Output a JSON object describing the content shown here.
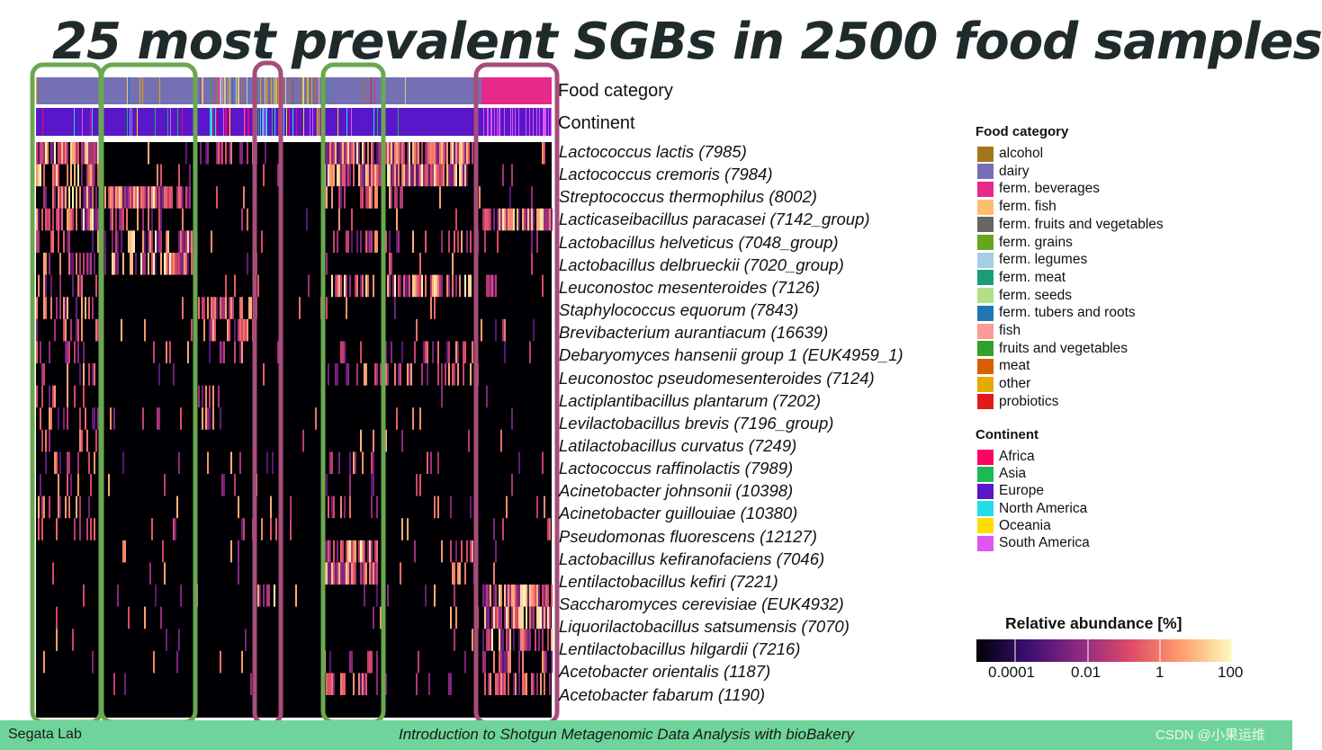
{
  "title": "25 most prevalent SGBs in 2500 food samples",
  "annotations": {
    "food_category_label": "Food category",
    "continent_label": "Continent"
  },
  "chart_data": {
    "type": "heatmap",
    "rows": [
      "Lactococcus lactis (7985)",
      "Lactococcus cremoris (7984)",
      "Streptococcus thermophilus (8002)",
      "Lacticaseibacillus paracasei (7142_group)",
      "Lactobacillus helveticus  (7048_group)",
      "Lactobacillus delbrueckii  (7020_group)",
      "Leuconostoc mesenteroides (7126)",
      "Staphylococcus equorum (7843)",
      "Brevibacterium aurantiacum (16639)",
      "Debaryomyces hansenii group 1 (EUK4959_1)",
      "Leuconostoc pseudomesenteroides (7124)",
      "Lactiplantibacillus plantarum (7202)",
      "Levilactobacillus brevis (7196_group)",
      "Latilactobacillus curvatus (7249)",
      "Lactococcus raffinolactis (7989)",
      "Acinetobacter johnsonii (10398)",
      "Acinetobacter guillouiae (10380)",
      "Pseudomonas fluorescens (12127)",
      "Lactobacillus kefiranofaciens (7046)",
      "Lentilactobacillus kefiri (7221)",
      "Saccharomyces cerevisiae (EUK4932)",
      "Liquorilactobacillus satsumensis (7070)",
      "Lentilactobacillus hilgardii (7216)",
      "Acetobacter orientalis (1187)",
      "Acetobacter fabarum (1190)"
    ],
    "n_samples": 2500,
    "color_scale": {
      "title": "Relative abundance [%]",
      "ticks": [
        "0.0001",
        "0.01",
        "1",
        "100"
      ],
      "scale": "log",
      "colors": [
        "#000004",
        "#3b0f70",
        "#8c2981",
        "#de4968",
        "#fe9f6d",
        "#fcfdbf"
      ]
    },
    "legend_placement": "right"
  },
  "legend_food": {
    "title": "Food category",
    "items": [
      {
        "label": "alcohol",
        "color": "#a6761d"
      },
      {
        "label": "dairy",
        "color": "#7570b3"
      },
      {
        "label": "ferm. beverages",
        "color": "#e7298a"
      },
      {
        "label": "ferm. fish",
        "color": "#fdbf6f"
      },
      {
        "label": "ferm. fruits and vegetables",
        "color": "#666666"
      },
      {
        "label": "ferm. grains",
        "color": "#66a61e"
      },
      {
        "label": "ferm. legumes",
        "color": "#a6cee3"
      },
      {
        "label": "ferm. meat",
        "color": "#1b9e77"
      },
      {
        "label": "ferm. seeds",
        "color": "#b2df8a"
      },
      {
        "label": "ferm. tubers and roots",
        "color": "#1f78b4"
      },
      {
        "label": "fish",
        "color": "#fb9a99"
      },
      {
        "label": "fruits and vegetables",
        "color": "#33a02c"
      },
      {
        "label": "meat",
        "color": "#d95f02"
      },
      {
        "label": "other",
        "color": "#e6ab02"
      },
      {
        "label": "probiotics",
        "color": "#e31a1c"
      }
    ]
  },
  "legend_continent": {
    "title": "Continent",
    "items": [
      {
        "label": "Africa",
        "color": "#ff0066"
      },
      {
        "label": "Asia",
        "color": "#1db954"
      },
      {
        "label": "Europe",
        "color": "#5a17c9"
      },
      {
        "label": "North America",
        "color": "#22dce6"
      },
      {
        "label": "Oceania",
        "color": "#ffdd00"
      },
      {
        "label": "South America",
        "color": "#e055f0"
      }
    ]
  },
  "highlight_colors": {
    "green": "#6aa84f",
    "purple": "#a64d79"
  },
  "footer": {
    "left": "Segata Lab",
    "center": "Introduction to Shotgun Metagenomic Data Analysis with bioBakery",
    "right": "CSDN @小果运维"
  }
}
